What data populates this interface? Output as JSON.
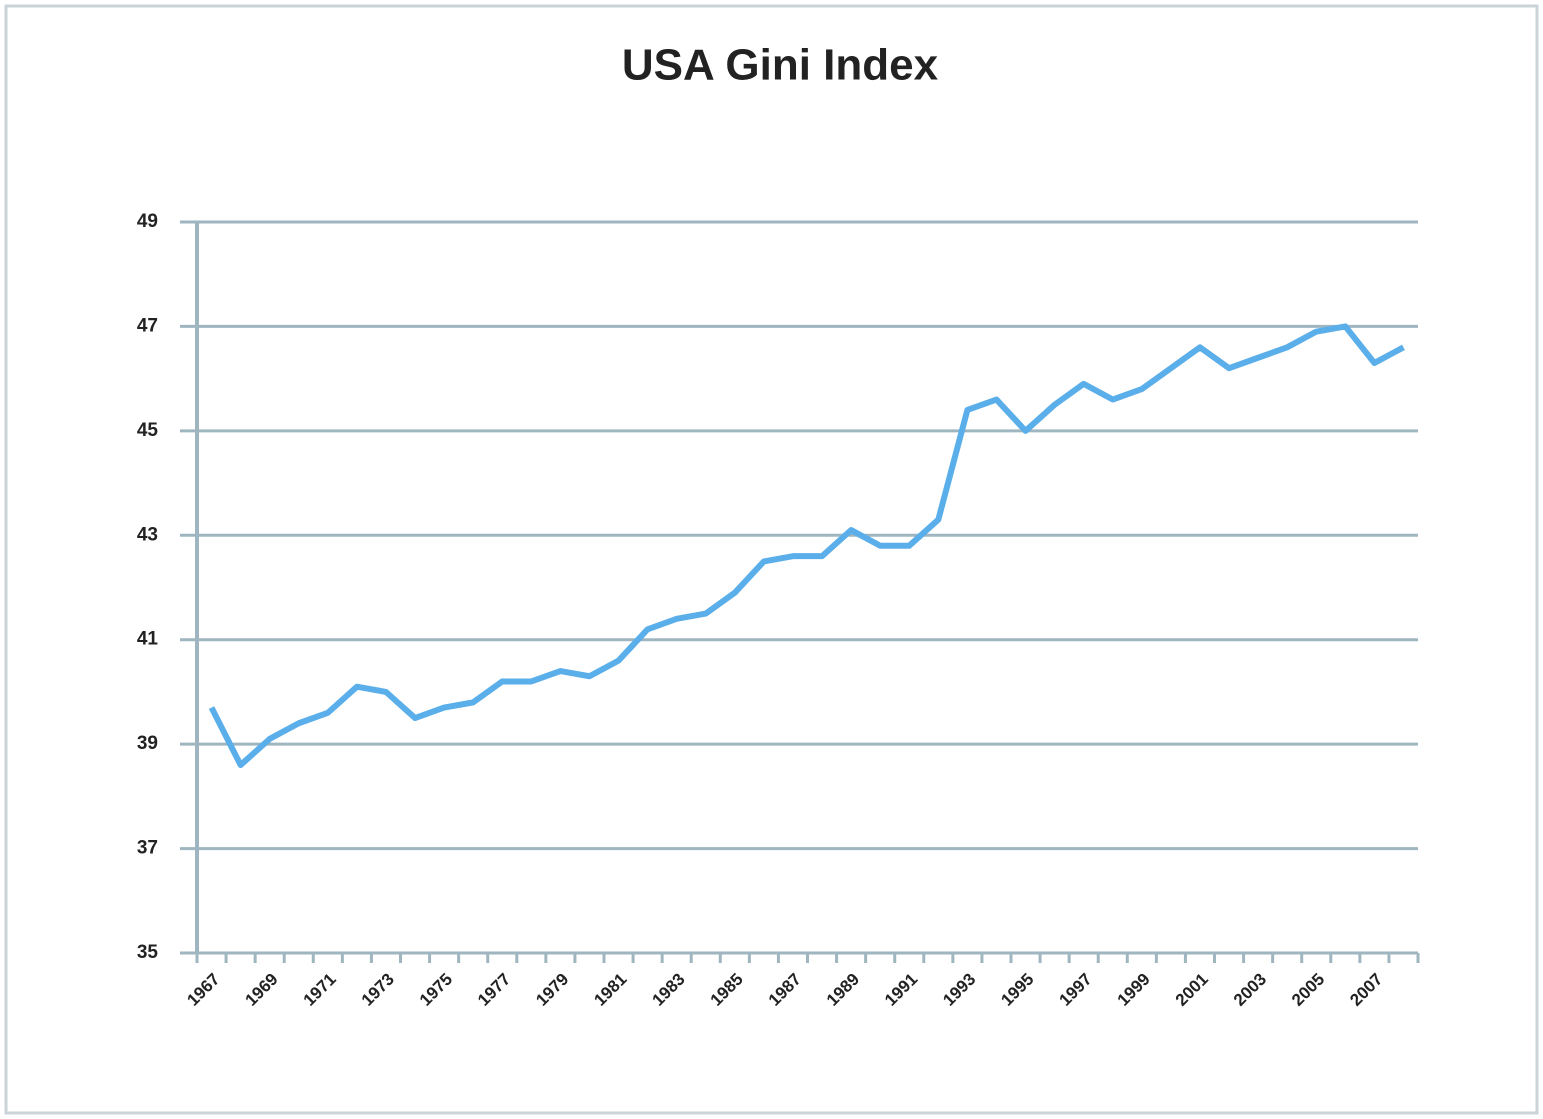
{
  "chart_data": {
    "type": "line",
    "title": "USA Gini Index",
    "categories": [
      "1967",
      null,
      "1969",
      null,
      "1971",
      null,
      "1973",
      null,
      "1975",
      null,
      "1977",
      null,
      "1979",
      null,
      "1981",
      null,
      "1983",
      null,
      "1985",
      null,
      "1987",
      null,
      "1989",
      null,
      "1991",
      null,
      "1993",
      null,
      "1995",
      null,
      "1997",
      null,
      "1999",
      null,
      "2001",
      null,
      "2003",
      null,
      "2005",
      null,
      "2007",
      null
    ],
    "series": [
      {
        "name": "Gini Index",
        "color": "#5aaeea",
        "values": [
          39.7,
          38.6,
          39.1,
          39.4,
          39.6,
          40.1,
          40.0,
          39.5,
          39.7,
          39.8,
          40.2,
          40.2,
          40.4,
          40.3,
          40.6,
          41.2,
          41.4,
          41.5,
          41.9,
          42.5,
          42.6,
          42.6,
          43.1,
          42.8,
          42.8,
          43.3,
          45.4,
          45.6,
          45.0,
          45.5,
          45.9,
          45.6,
          45.8,
          46.2,
          46.6,
          46.2,
          46.4,
          46.6,
          46.9,
          47.0,
          46.3,
          46.6
        ]
      }
    ],
    "ylim": [
      35,
      49
    ],
    "yticks": [
      35,
      37,
      39,
      41,
      43,
      45,
      47,
      49
    ],
    "grid": true
  }
}
